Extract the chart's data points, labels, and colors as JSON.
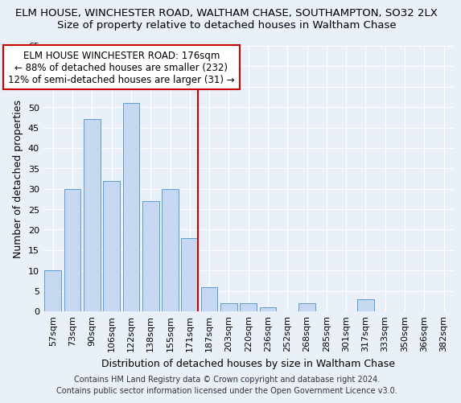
{
  "title": "ELM HOUSE, WINCHESTER ROAD, WALTHAM CHASE, SOUTHAMPTON, SO32 2LX",
  "subtitle": "Size of property relative to detached houses in Waltham Chase",
  "xlabel": "Distribution of detached houses by size in Waltham Chase",
  "ylabel": "Number of detached properties",
  "categories": [
    "57sqm",
    "73sqm",
    "90sqm",
    "106sqm",
    "122sqm",
    "138sqm",
    "155sqm",
    "171sqm",
    "187sqm",
    "203sqm",
    "220sqm",
    "236sqm",
    "252sqm",
    "268sqm",
    "285sqm",
    "301sqm",
    "317sqm",
    "333sqm",
    "350sqm",
    "366sqm",
    "382sqm"
  ],
  "values": [
    10,
    30,
    47,
    32,
    51,
    27,
    30,
    18,
    6,
    2,
    2,
    1,
    0,
    2,
    0,
    0,
    3,
    0,
    0,
    0,
    0
  ],
  "bar_color": "#c5d8f0",
  "bar_edge_color": "#5b9bd5",
  "red_line_index": 7,
  "annotation_line1": "ELM HOUSE WINCHESTER ROAD: 176sqm",
  "annotation_line2": "← 88% of detached houses are smaller (232)",
  "annotation_line3": "12% of semi-detached houses are larger (31) →",
  "annotation_box_color": "#ffffff",
  "annotation_box_edge_color": "#cc0000",
  "footer_line1": "Contains HM Land Registry data © Crown copyright and database right 2024.",
  "footer_line2": "Contains public sector information licensed under the Open Government Licence v3.0.",
  "ylim": [
    0,
    65
  ],
  "yticks": [
    0,
    5,
    10,
    15,
    20,
    25,
    30,
    35,
    40,
    45,
    50,
    55,
    60,
    65
  ],
  "bg_color": "#eaf0f8",
  "grid_color": "#ffffff",
  "title_fontsize": 9.5,
  "subtitle_fontsize": 9.5,
  "axis_label_fontsize": 9,
  "tick_fontsize": 8,
  "annotation_fontsize": 8.5,
  "footer_fontsize": 7
}
